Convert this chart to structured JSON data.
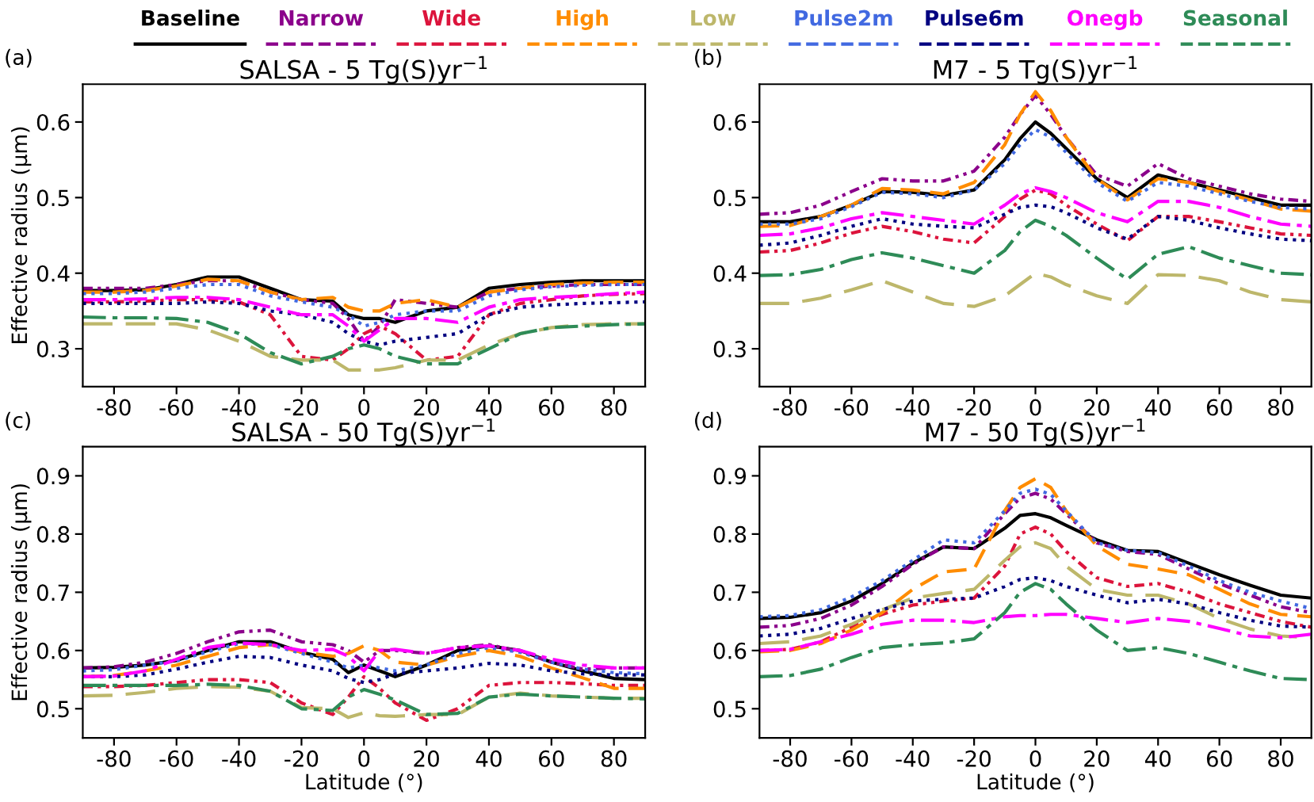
{
  "chart_data": [
    {
      "type": "line",
      "title": "SALSA - 5 Tg(S)yr$^{−1}$",
      "ylabel": "Effective radius (μm)",
      "annotations": [
        "(a)"
      ],
      "legend": "top",
      "x": [
        -90,
        -80,
        -70,
        -60,
        -50,
        -40,
        -30,
        -20,
        -10,
        -5,
        0,
        5,
        10,
        20,
        30,
        40,
        50,
        60,
        70,
        80,
        90
      ],
      "xlim": [
        -90,
        90
      ],
      "xticks": [
        -80,
        -60,
        -40,
        -20,
        0,
        20,
        40,
        60,
        80
      ],
      "ylim": [
        0.25,
        0.65
      ],
      "yticks": [
        0.3,
        0.4,
        0.5,
        0.6
      ],
      "grid": false,
      "series": [
        {
          "name": "Baseline",
          "color": "#000000",
          "line_style": "solid",
          "values": [
            0.377,
            0.377,
            0.378,
            0.385,
            0.395,
            0.395,
            0.38,
            0.365,
            0.363,
            0.345,
            0.34,
            0.34,
            0.335,
            0.35,
            0.355,
            0.38,
            0.385,
            0.388,
            0.39,
            0.39,
            0.39
          ]
        },
        {
          "name": "Narrow",
          "color": "#8b008b",
          "line_style": "dashdotdot",
          "values": [
            0.38,
            0.38,
            0.38,
            0.385,
            0.39,
            0.39,
            0.375,
            0.365,
            0.36,
            0.34,
            0.31,
            0.33,
            0.365,
            0.36,
            0.355,
            0.375,
            0.38,
            0.383,
            0.385,
            0.385,
            0.385
          ]
        },
        {
          "name": "Wide",
          "color": "#dc143c",
          "line_style": "dashdotdot",
          "values": [
            0.362,
            0.362,
            0.363,
            0.365,
            0.365,
            0.362,
            0.345,
            0.29,
            0.285,
            0.3,
            0.32,
            0.33,
            0.32,
            0.285,
            0.29,
            0.345,
            0.36,
            0.365,
            0.37,
            0.372,
            0.373
          ]
        },
        {
          "name": "High",
          "color": "#ff8c00",
          "line_style": "dashed",
          "values": [
            0.375,
            0.375,
            0.377,
            0.383,
            0.392,
            0.39,
            0.375,
            0.365,
            0.368,
            0.355,
            0.35,
            0.35,
            0.36,
            0.365,
            0.355,
            0.375,
            0.38,
            0.385,
            0.387,
            0.388,
            0.388
          ]
        },
        {
          "name": "Low",
          "color": "#bdb76b",
          "line_style": "longdash",
          "values": [
            0.333,
            0.333,
            0.333,
            0.333,
            0.325,
            0.31,
            0.29,
            0.285,
            0.285,
            0.272,
            0.272,
            0.272,
            0.275,
            0.285,
            0.285,
            0.305,
            0.32,
            0.328,
            0.332,
            0.333,
            0.333
          ]
        },
        {
          "name": "Pulse2m",
          "color": "#4169e1",
          "line_style": "dotted",
          "values": [
            0.373,
            0.373,
            0.375,
            0.38,
            0.385,
            0.385,
            0.37,
            0.362,
            0.355,
            0.345,
            0.33,
            0.335,
            0.345,
            0.35,
            0.35,
            0.37,
            0.378,
            0.382,
            0.384,
            0.385,
            0.385
          ]
        },
        {
          "name": "Pulse6m",
          "color": "#000080",
          "line_style": "dotted",
          "values": [
            0.36,
            0.36,
            0.36,
            0.36,
            0.362,
            0.36,
            0.35,
            0.345,
            0.335,
            0.32,
            0.31,
            0.305,
            0.31,
            0.315,
            0.32,
            0.345,
            0.355,
            0.358,
            0.36,
            0.361,
            0.362
          ]
        },
        {
          "name": "Onegb",
          "color": "#ff00ff",
          "line_style": "dashdot",
          "values": [
            0.365,
            0.365,
            0.366,
            0.368,
            0.368,
            0.365,
            0.355,
            0.345,
            0.345,
            0.33,
            0.31,
            0.325,
            0.34,
            0.34,
            0.335,
            0.355,
            0.365,
            0.368,
            0.37,
            0.373,
            0.375
          ]
        },
        {
          "name": "Seasonal",
          "color": "#2e8b57",
          "line_style": "dashdot",
          "values": [
            0.342,
            0.341,
            0.341,
            0.34,
            0.335,
            0.32,
            0.295,
            0.28,
            0.29,
            0.3,
            0.305,
            0.3,
            0.29,
            0.28,
            0.28,
            0.3,
            0.32,
            0.328,
            0.33,
            0.332,
            0.333
          ]
        }
      ]
    },
    {
      "type": "line",
      "title": "M7 - 5 Tg(S)yr$^{−1}$",
      "annotations": [
        "(b)"
      ],
      "x": [
        -90,
        -80,
        -70,
        -60,
        -50,
        -40,
        -30,
        -20,
        -10,
        -5,
        0,
        5,
        10,
        20,
        30,
        40,
        50,
        60,
        70,
        80,
        90
      ],
      "xlim": [
        -90,
        90
      ],
      "xticks": [
        -80,
        -60,
        -40,
        -20,
        0,
        20,
        40,
        60,
        80
      ],
      "ylim": [
        0.25,
        0.65
      ],
      "yticks": [
        0.3,
        0.4,
        0.5,
        0.6
      ],
      "grid": false,
      "series": [
        {
          "color": "#000000",
          "line_style": "solid",
          "values": [
            0.468,
            0.468,
            0.475,
            0.49,
            0.508,
            0.507,
            0.503,
            0.51,
            0.55,
            0.578,
            0.6,
            0.585,
            0.565,
            0.525,
            0.5,
            0.53,
            0.52,
            0.51,
            0.5,
            0.49,
            0.49
          ]
        },
        {
          "color": "#8b008b",
          "line_style": "dashdotdot",
          "values": [
            0.478,
            0.48,
            0.49,
            0.508,
            0.525,
            0.522,
            0.522,
            0.535,
            0.58,
            0.61,
            0.635,
            0.61,
            0.58,
            0.53,
            0.515,
            0.545,
            0.525,
            0.515,
            0.505,
            0.498,
            0.495
          ]
        },
        {
          "color": "#dc143c",
          "line_style": "dashdotdot",
          "values": [
            0.428,
            0.43,
            0.44,
            0.453,
            0.462,
            0.455,
            0.445,
            0.44,
            0.475,
            0.498,
            0.51,
            0.505,
            0.49,
            0.465,
            0.443,
            0.475,
            0.475,
            0.468,
            0.46,
            0.452,
            0.45
          ]
        },
        {
          "color": "#ff8c00",
          "line_style": "dashed",
          "values": [
            0.462,
            0.463,
            0.475,
            0.49,
            0.512,
            0.51,
            0.505,
            0.52,
            0.57,
            0.61,
            0.64,
            0.615,
            0.58,
            0.525,
            0.497,
            0.525,
            0.52,
            0.508,
            0.497,
            0.485,
            0.482
          ]
        },
        {
          "color": "#bdb76b",
          "line_style": "longdash",
          "values": [
            0.36,
            0.36,
            0.367,
            0.378,
            0.39,
            0.375,
            0.36,
            0.356,
            0.37,
            0.385,
            0.4,
            0.395,
            0.385,
            0.37,
            0.36,
            0.398,
            0.397,
            0.39,
            0.375,
            0.365,
            0.362
          ]
        },
        {
          "color": "#4169e1",
          "line_style": "dotted",
          "values": [
            0.465,
            0.465,
            0.472,
            0.488,
            0.507,
            0.505,
            0.5,
            0.51,
            0.545,
            0.57,
            0.59,
            0.58,
            0.56,
            0.52,
            0.495,
            0.52,
            0.515,
            0.505,
            0.495,
            0.487,
            0.485
          ]
        },
        {
          "color": "#000080",
          "line_style": "dotted",
          "values": [
            0.437,
            0.44,
            0.45,
            0.462,
            0.472,
            0.465,
            0.462,
            0.46,
            0.478,
            0.487,
            0.49,
            0.488,
            0.48,
            0.46,
            0.445,
            0.475,
            0.47,
            0.46,
            0.452,
            0.445,
            0.443
          ]
        },
        {
          "color": "#ff00ff",
          "line_style": "dashdot",
          "values": [
            0.45,
            0.452,
            0.46,
            0.472,
            0.48,
            0.475,
            0.47,
            0.465,
            0.49,
            0.505,
            0.513,
            0.508,
            0.5,
            0.48,
            0.468,
            0.495,
            0.495,
            0.487,
            0.475,
            0.465,
            0.462
          ]
        },
        {
          "color": "#2e8b57",
          "line_style": "dashdot",
          "values": [
            0.397,
            0.398,
            0.405,
            0.418,
            0.427,
            0.42,
            0.41,
            0.4,
            0.43,
            0.455,
            0.47,
            0.462,
            0.45,
            0.42,
            0.392,
            0.425,
            0.435,
            0.42,
            0.41,
            0.4,
            0.398
          ]
        }
      ]
    },
    {
      "type": "line",
      "title": "SALSA - 50 Tg(S)yr$^{−1}$",
      "xlabel": "Latitude (°)",
      "ylabel": "Effective radius (μm)",
      "annotations": [
        "(c)"
      ],
      "x": [
        -90,
        -80,
        -70,
        -60,
        -50,
        -40,
        -30,
        -20,
        -10,
        -5,
        0,
        5,
        10,
        20,
        30,
        40,
        50,
        60,
        70,
        80,
        90
      ],
      "xlim": [
        -90,
        90
      ],
      "xticks": [
        -80,
        -60,
        -40,
        -20,
        0,
        20,
        40,
        60,
        80
      ],
      "ylim": [
        0.45,
        0.95
      ],
      "yticks": [
        0.5,
        0.6,
        0.7,
        0.8,
        0.9
      ],
      "grid": false,
      "series": [
        {
          "color": "#000000",
          "line_style": "solid",
          "values": [
            0.57,
            0.571,
            0.575,
            0.583,
            0.6,
            0.615,
            0.615,
            0.597,
            0.585,
            0.562,
            0.575,
            0.565,
            0.555,
            0.575,
            0.6,
            0.608,
            0.6,
            0.58,
            0.565,
            0.552,
            0.55
          ]
        },
        {
          "color": "#8b008b",
          "line_style": "dashdotdot",
          "values": [
            0.57,
            0.572,
            0.58,
            0.595,
            0.615,
            0.632,
            0.635,
            0.615,
            0.61,
            0.6,
            0.58,
            0.6,
            0.6,
            0.595,
            0.605,
            0.61,
            0.598,
            0.58,
            0.568,
            0.57,
            0.57
          ]
        },
        {
          "color": "#dc143c",
          "line_style": "dashdotdot",
          "values": [
            0.538,
            0.538,
            0.54,
            0.545,
            0.55,
            0.55,
            0.545,
            0.51,
            0.49,
            0.52,
            0.555,
            0.535,
            0.51,
            0.48,
            0.5,
            0.54,
            0.545,
            0.545,
            0.543,
            0.54,
            0.54
          ]
        },
        {
          "color": "#ff8c00",
          "line_style": "dashed",
          "values": [
            0.555,
            0.557,
            0.565,
            0.575,
            0.59,
            0.605,
            0.61,
            0.597,
            0.59,
            0.595,
            0.608,
            0.6,
            0.58,
            0.575,
            0.59,
            0.6,
            0.59,
            0.57,
            0.553,
            0.535,
            0.535
          ]
        },
        {
          "color": "#bdb76b",
          "line_style": "longdash",
          "values": [
            0.522,
            0.523,
            0.528,
            0.535,
            0.538,
            0.537,
            0.53,
            0.502,
            0.5,
            0.485,
            0.493,
            0.488,
            0.487,
            0.49,
            0.49,
            0.52,
            0.527,
            0.522,
            0.52,
            0.518,
            0.518
          ]
        },
        {
          "color": "#4169e1",
          "line_style": "dotted",
          "values": [
            0.565,
            0.567,
            0.575,
            0.582,
            0.598,
            0.612,
            0.61,
            0.595,
            0.58,
            0.57,
            0.575,
            0.57,
            0.565,
            0.575,
            0.595,
            0.605,
            0.597,
            0.58,
            0.568,
            0.562,
            0.56
          ]
        },
        {
          "color": "#000080",
          "line_style": "dotted",
          "values": [
            0.555,
            0.555,
            0.558,
            0.568,
            0.58,
            0.59,
            0.588,
            0.575,
            0.565,
            0.552,
            0.545,
            0.55,
            0.56,
            0.565,
            0.57,
            0.578,
            0.575,
            0.565,
            0.56,
            0.558,
            0.558
          ]
        },
        {
          "color": "#ff00ff",
          "line_style": "dashdot",
          "values": [
            0.555,
            0.556,
            0.565,
            0.585,
            0.605,
            0.613,
            0.61,
            0.6,
            0.602,
            0.59,
            0.565,
            0.6,
            0.602,
            0.595,
            0.605,
            0.608,
            0.6,
            0.585,
            0.575,
            0.57,
            0.57
          ]
        },
        {
          "color": "#2e8b57",
          "line_style": "dashdot",
          "values": [
            0.54,
            0.54,
            0.54,
            0.54,
            0.542,
            0.54,
            0.53,
            0.5,
            0.497,
            0.52,
            0.533,
            0.525,
            0.515,
            0.49,
            0.492,
            0.52,
            0.525,
            0.522,
            0.52,
            0.518,
            0.517
          ]
        }
      ]
    },
    {
      "type": "line",
      "title": "M7 - 50 Tg(S)yr$^{−1}$",
      "xlabel": "Latitude (°)",
      "annotations": [
        "(d)"
      ],
      "x": [
        -90,
        -80,
        -70,
        -60,
        -50,
        -40,
        -30,
        -20,
        -10,
        -5,
        0,
        5,
        10,
        20,
        30,
        40,
        50,
        60,
        70,
        80,
        90
      ],
      "xlim": [
        -90,
        90
      ],
      "xticks": [
        -80,
        -60,
        -40,
        -20,
        0,
        20,
        40,
        60,
        80
      ],
      "ylim": [
        0.45,
        0.95
      ],
      "yticks": [
        0.5,
        0.6,
        0.7,
        0.8,
        0.9
      ],
      "grid": false,
      "series": [
        {
          "color": "#000000",
          "line_style": "solid",
          "values": [
            0.655,
            0.657,
            0.665,
            0.685,
            0.715,
            0.75,
            0.778,
            0.775,
            0.81,
            0.832,
            0.835,
            0.828,
            0.815,
            0.79,
            0.772,
            0.77,
            0.75,
            0.73,
            0.712,
            0.695,
            0.69
          ]
        },
        {
          "color": "#8b008b",
          "line_style": "dashdotdot",
          "values": [
            0.64,
            0.643,
            0.655,
            0.678,
            0.71,
            0.748,
            0.778,
            0.775,
            0.835,
            0.862,
            0.87,
            0.86,
            0.835,
            0.785,
            0.77,
            0.765,
            0.74,
            0.715,
            0.695,
            0.675,
            0.665
          ]
        },
        {
          "color": "#dc143c",
          "line_style": "dashdotdot",
          "values": [
            0.6,
            0.602,
            0.615,
            0.64,
            0.662,
            0.678,
            0.685,
            0.69,
            0.745,
            0.8,
            0.812,
            0.8,
            0.77,
            0.725,
            0.71,
            0.715,
            0.7,
            0.68,
            0.665,
            0.65,
            0.64
          ]
        },
        {
          "color": "#ff8c00",
          "line_style": "dashed",
          "values": [
            0.598,
            0.6,
            0.612,
            0.635,
            0.665,
            0.705,
            0.735,
            0.74,
            0.84,
            0.88,
            0.895,
            0.88,
            0.84,
            0.78,
            0.748,
            0.74,
            0.73,
            0.705,
            0.68,
            0.662,
            0.658
          ]
        },
        {
          "color": "#bdb76b",
          "line_style": "longdash",
          "values": [
            0.612,
            0.615,
            0.625,
            0.645,
            0.67,
            0.69,
            0.698,
            0.705,
            0.755,
            0.778,
            0.785,
            0.775,
            0.745,
            0.705,
            0.695,
            0.695,
            0.68,
            0.655,
            0.637,
            0.625,
            0.622
          ]
        },
        {
          "color": "#4169e1",
          "line_style": "dotted",
          "values": [
            0.658,
            0.66,
            0.67,
            0.692,
            0.72,
            0.755,
            0.79,
            0.785,
            0.84,
            0.87,
            0.877,
            0.868,
            0.84,
            0.785,
            0.772,
            0.768,
            0.745,
            0.72,
            0.7,
            0.685,
            0.672
          ]
        },
        {
          "color": "#000080",
          "line_style": "dotted",
          "values": [
            0.625,
            0.628,
            0.638,
            0.655,
            0.67,
            0.685,
            0.688,
            0.69,
            0.71,
            0.722,
            0.725,
            0.72,
            0.71,
            0.695,
            0.682,
            0.688,
            0.68,
            0.665,
            0.652,
            0.642,
            0.64
          ]
        },
        {
          "color": "#ff00ff",
          "line_style": "dashdot",
          "values": [
            0.6,
            0.602,
            0.615,
            0.628,
            0.645,
            0.652,
            0.652,
            0.648,
            0.658,
            0.66,
            0.66,
            0.662,
            0.662,
            0.655,
            0.648,
            0.655,
            0.65,
            0.638,
            0.625,
            0.622,
            0.628
          ]
        },
        {
          "color": "#2e8b57",
          "line_style": "dashdot",
          "values": [
            0.555,
            0.557,
            0.568,
            0.588,
            0.605,
            0.61,
            0.613,
            0.62,
            0.665,
            0.7,
            0.715,
            0.705,
            0.68,
            0.635,
            0.6,
            0.605,
            0.595,
            0.58,
            0.565,
            0.552,
            0.55
          ]
        }
      ]
    }
  ]
}
